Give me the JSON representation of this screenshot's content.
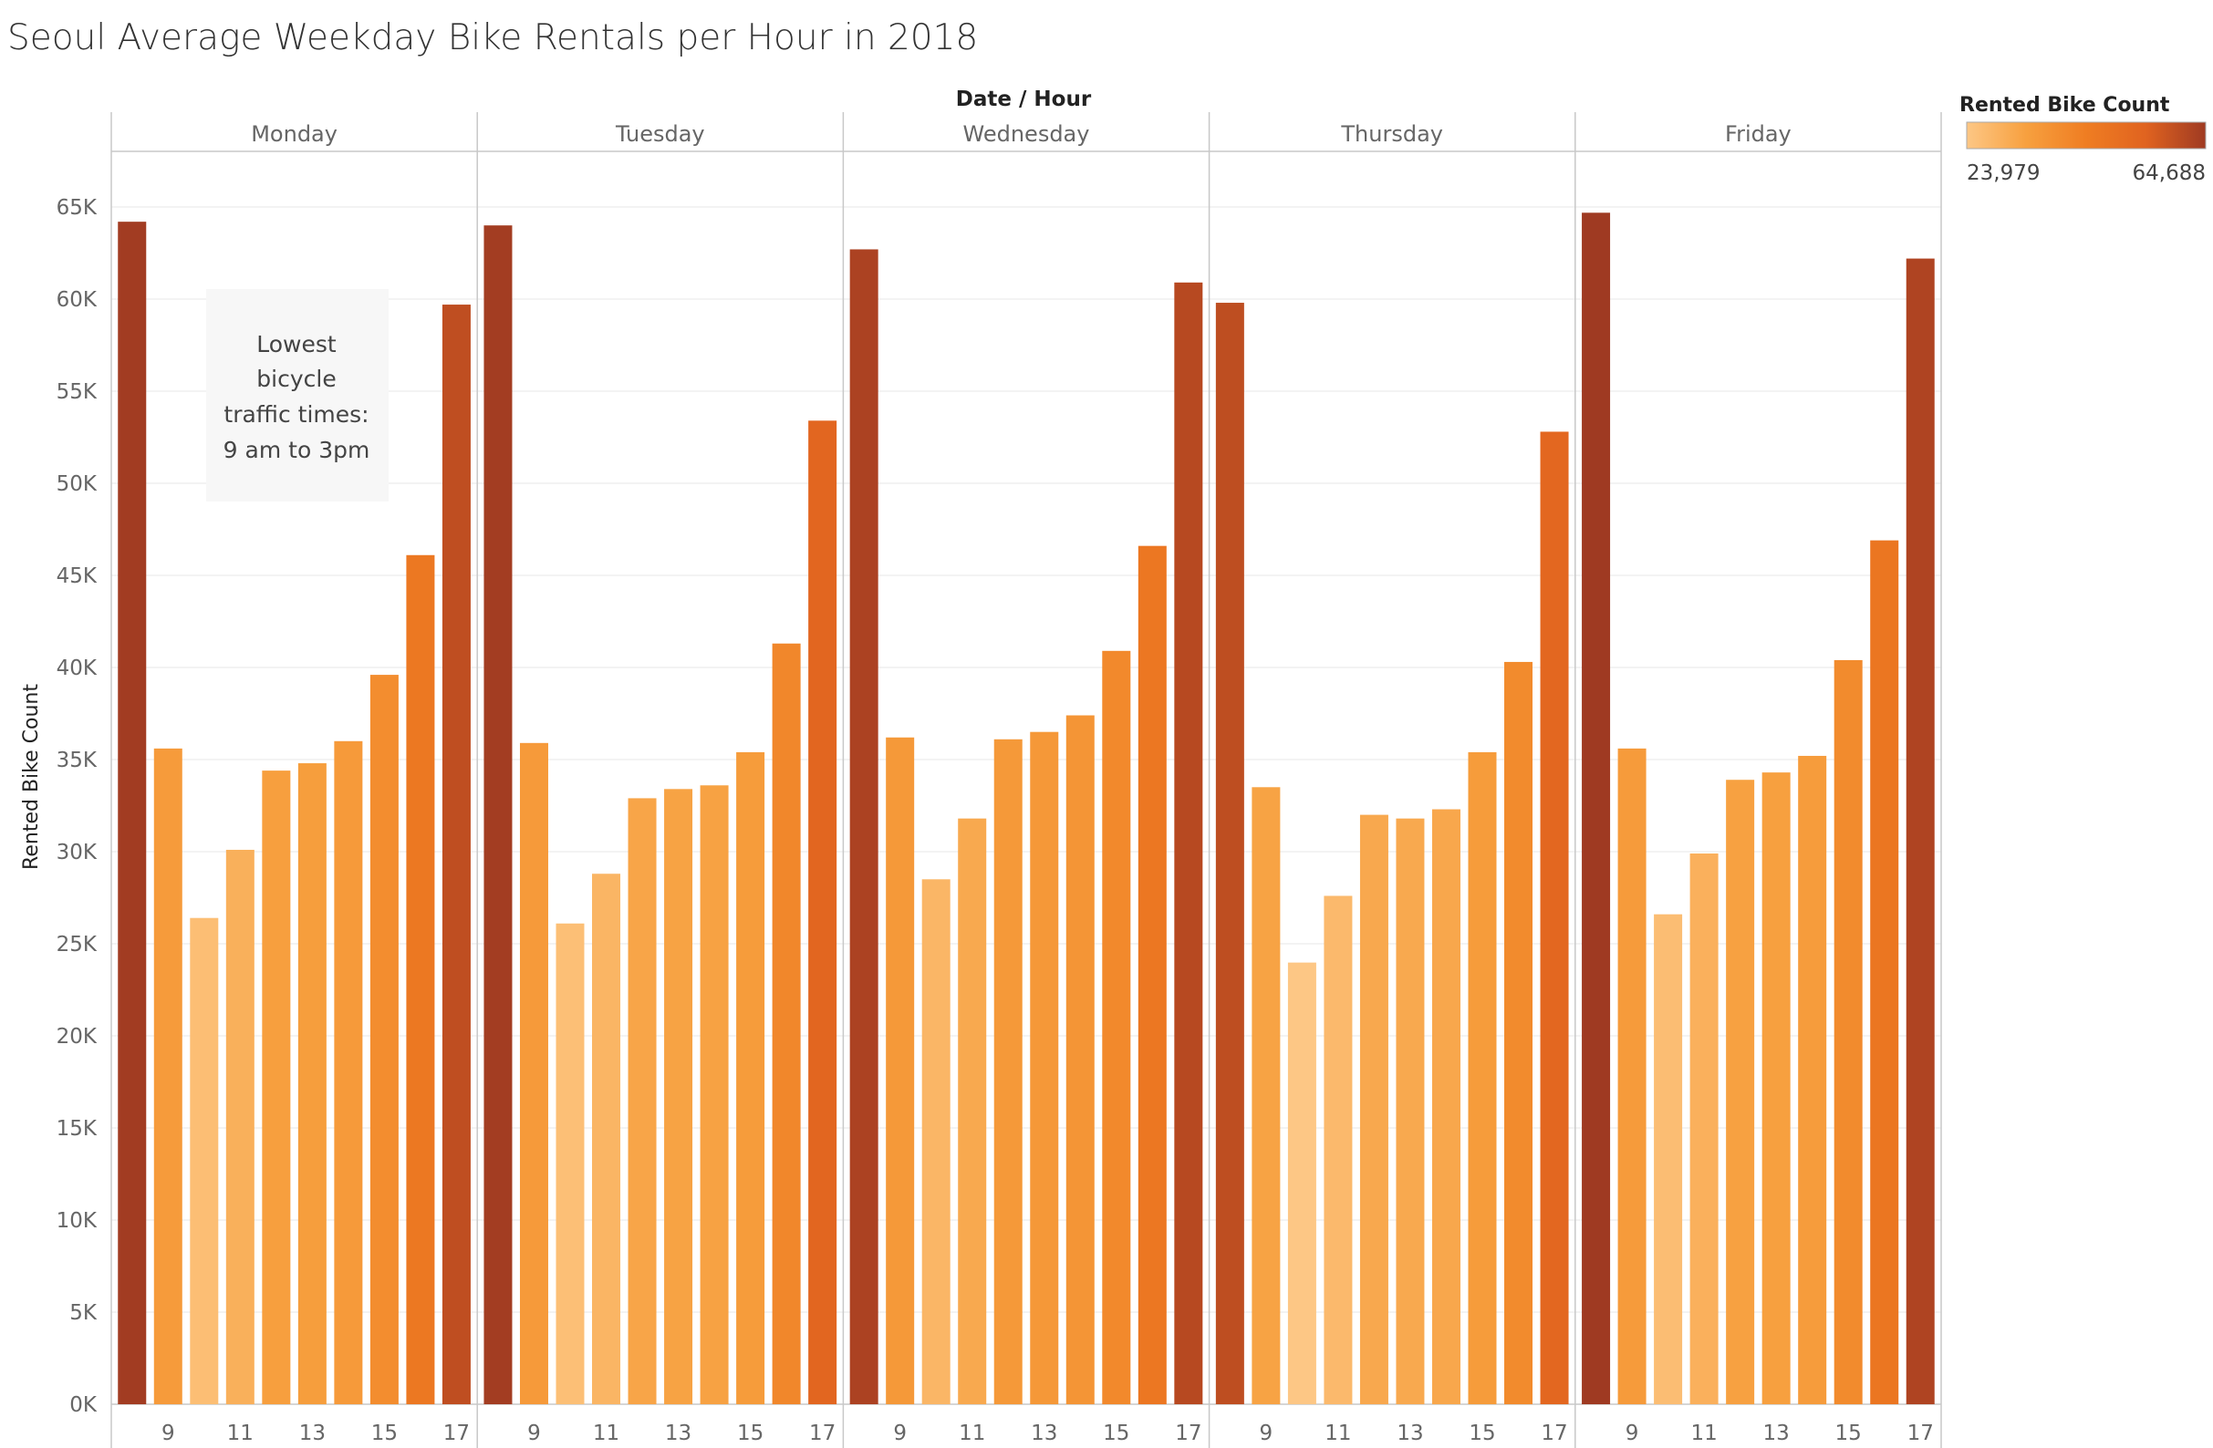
{
  "chart_data": {
    "type": "bar",
    "title": "Seoul Average Weekday Bike Rentals per Hour in 2018",
    "column_header": "Date  /  Hour",
    "ylabel": "Rented Bike Count",
    "ylim": [
      0,
      65000
    ],
    "y_ticks": [
      "0K",
      "5K",
      "10K",
      "15K",
      "20K",
      "25K",
      "30K",
      "35K",
      "40K",
      "45K",
      "50K",
      "55K",
      "60K",
      "65K"
    ],
    "hours": [
      8,
      9,
      10,
      11,
      12,
      13,
      14,
      15,
      16,
      17
    ],
    "hour_tick_labels": [
      "9",
      "11",
      "13",
      "15",
      "17"
    ],
    "grid": true,
    "panels": [
      {
        "name": "Monday",
        "values": [
          64200,
          35600,
          26400,
          30100,
          34400,
          34800,
          36000,
          39600,
          46100,
          59700
        ]
      },
      {
        "name": "Tuesday",
        "values": [
          64000,
          35900,
          26100,
          28800,
          32900,
          33400,
          33600,
          35400,
          41300,
          53400
        ]
      },
      {
        "name": "Wednesday",
        "values": [
          62700,
          36200,
          28500,
          31800,
          36100,
          36500,
          37400,
          40900,
          46600,
          60900
        ]
      },
      {
        "name": "Thursday",
        "values": [
          59800,
          33500,
          23979,
          27600,
          32000,
          31800,
          32300,
          35400,
          40300,
          52800
        ]
      },
      {
        "name": "Friday",
        "values": [
          64688,
          35600,
          26600,
          29900,
          33900,
          34300,
          35200,
          40400,
          46900,
          62200
        ]
      }
    ],
    "legend": {
      "title": "Rented Bike Count",
      "min_label": "23,979",
      "max_label": "64,688",
      "min_value": 23979,
      "max_value": 64688,
      "colors": [
        "#fdc785",
        "#f7a03f",
        "#ef7d22",
        "#e06320",
        "#9f3a22"
      ],
      "placement": "top-right"
    },
    "annotation": {
      "lines": [
        "Lowest",
        "bicycle",
        "traffic times:",
        "9 am to 3pm"
      ]
    }
  }
}
